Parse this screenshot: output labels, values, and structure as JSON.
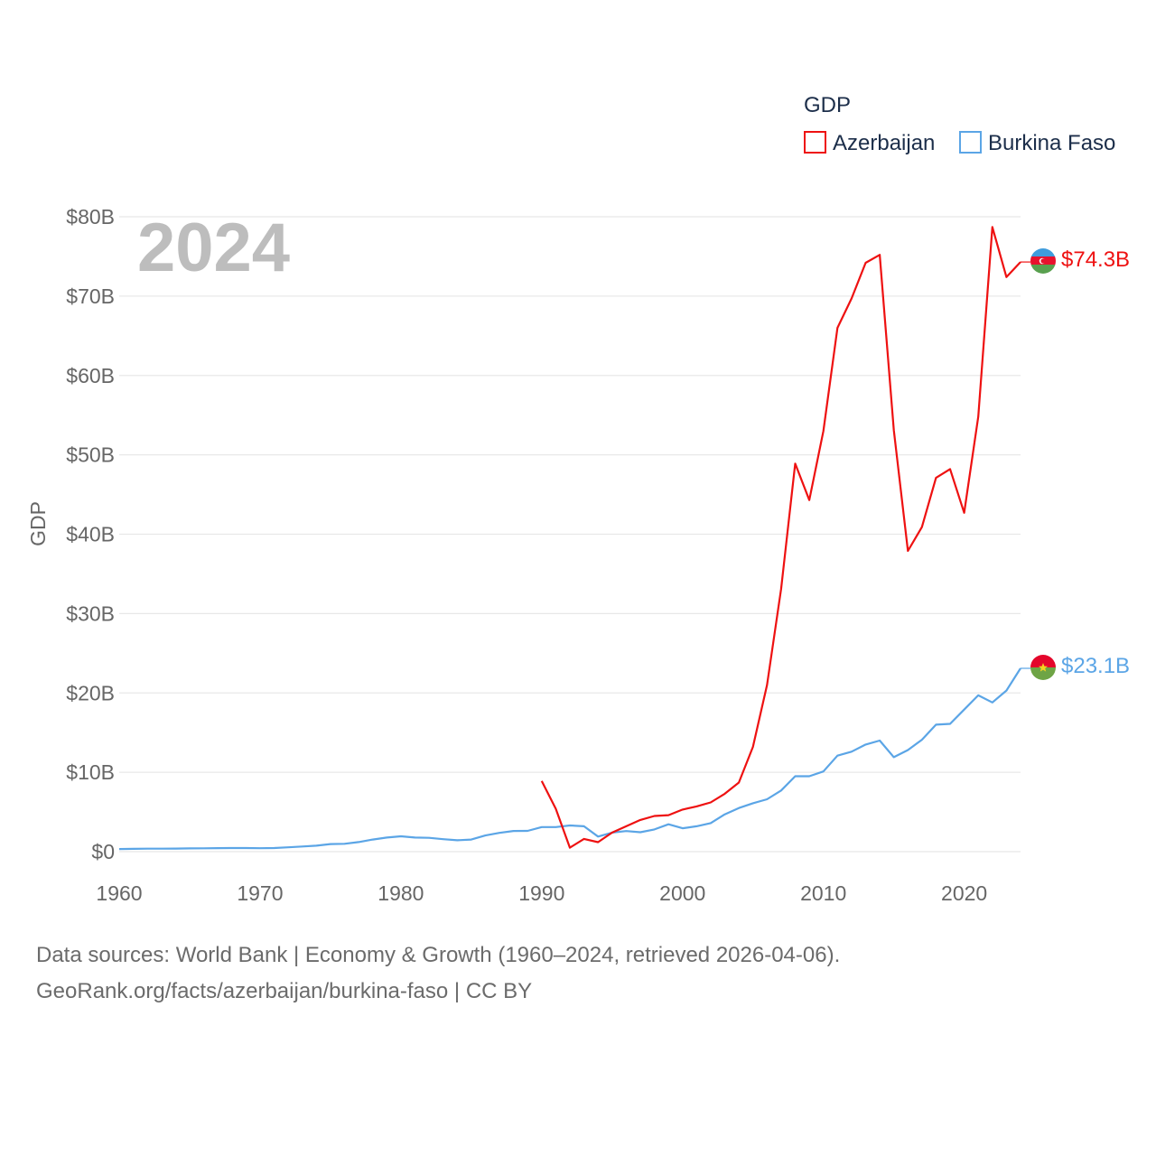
{
  "chart_data": {
    "type": "line",
    "title": "GDP",
    "year_label": "2024",
    "ylabel": "GDP",
    "xlabel": "",
    "xlim": [
      1960,
      2024
    ],
    "ylim": [
      0,
      80
    ],
    "x_ticks": [
      1960,
      1970,
      1980,
      1990,
      2000,
      2010,
      2020
    ],
    "x_tick_labels": [
      "1960",
      "1970",
      "1980",
      "1990",
      "2000",
      "2010",
      "2020"
    ],
    "y_ticks": [
      0,
      10,
      20,
      30,
      40,
      50,
      60,
      70,
      80
    ],
    "y_tick_labels": [
      "$0",
      "$10B",
      "$20B",
      "$30B",
      "$40B",
      "$50B",
      "$60B",
      "$70B",
      "$80B"
    ],
    "legend_position": "top-right",
    "grid": true,
    "series": [
      {
        "name": "Azerbaijan",
        "color": "#ee1111",
        "end_label": "$74.3B",
        "x": [
          1990,
          1991,
          1992,
          1993,
          1994,
          1995,
          1996,
          1997,
          1998,
          1999,
          2000,
          2001,
          2002,
          2003,
          2004,
          2005,
          2006,
          2007,
          2008,
          2009,
          2010,
          2011,
          2012,
          2013,
          2014,
          2015,
          2016,
          2017,
          2018,
          2019,
          2020,
          2021,
          2022,
          2023,
          2024
        ],
        "values": [
          8.9,
          5.4,
          0.5,
          1.6,
          1.2,
          2.4,
          3.2,
          4.0,
          4.5,
          4.6,
          5.3,
          5.7,
          6.2,
          7.3,
          8.7,
          13.2,
          21.0,
          33.1,
          48.9,
          44.3,
          53.0,
          66.0,
          69.7,
          74.2,
          75.2,
          53.1,
          37.9,
          40.9,
          47.1,
          48.2,
          42.7,
          54.8,
          78.7,
          72.4,
          74.3
        ]
      },
      {
        "name": "Burkina Faso",
        "color": "#5ba5e6",
        "end_label": "$23.1B",
        "x": [
          1960,
          1961,
          1962,
          1963,
          1964,
          1965,
          1966,
          1967,
          1968,
          1969,
          1970,
          1971,
          1972,
          1973,
          1974,
          1975,
          1976,
          1977,
          1978,
          1979,
          1980,
          1981,
          1982,
          1983,
          1984,
          1985,
          1986,
          1987,
          1988,
          1989,
          1990,
          1991,
          1992,
          1993,
          1994,
          1995,
          1996,
          1997,
          1998,
          1999,
          2000,
          2001,
          2002,
          2003,
          2004,
          2005,
          2006,
          2007,
          2008,
          2009,
          2010,
          2011,
          2012,
          2013,
          2014,
          2015,
          2016,
          2017,
          2018,
          2019,
          2020,
          2021,
          2022,
          2023,
          2024
        ],
        "values": [
          0.33,
          0.35,
          0.37,
          0.38,
          0.39,
          0.41,
          0.42,
          0.44,
          0.45,
          0.46,
          0.43,
          0.45,
          0.55,
          0.65,
          0.75,
          0.96,
          0.99,
          1.21,
          1.52,
          1.78,
          1.93,
          1.77,
          1.74,
          1.57,
          1.43,
          1.53,
          2.04,
          2.37,
          2.61,
          2.62,
          3.1,
          3.1,
          3.3,
          3.2,
          1.9,
          2.4,
          2.6,
          2.45,
          2.8,
          3.45,
          2.95,
          3.2,
          3.6,
          4.7,
          5.5,
          6.1,
          6.6,
          7.7,
          9.5,
          9.5,
          10.1,
          12.1,
          12.6,
          13.5,
          14.0,
          11.9,
          12.8,
          14.1,
          16.0,
          16.1,
          17.9,
          19.7,
          18.8,
          20.3,
          23.1
        ]
      }
    ]
  },
  "source": {
    "line1": "Data sources: World Bank | Economy & Growth (1960–2024, retrieved 2026-04-06).",
    "line2": "GeoRank.org/facts/azerbaijan/burkina-faso | CC BY"
  },
  "colors": {
    "grid": "#e8e8e8",
    "azerbaijan_flag": [
      "#3f9cdc",
      "#e8112d",
      "#59a04f"
    ],
    "burkina_flag": [
      "#e4062b",
      "#6ea445"
    ]
  }
}
